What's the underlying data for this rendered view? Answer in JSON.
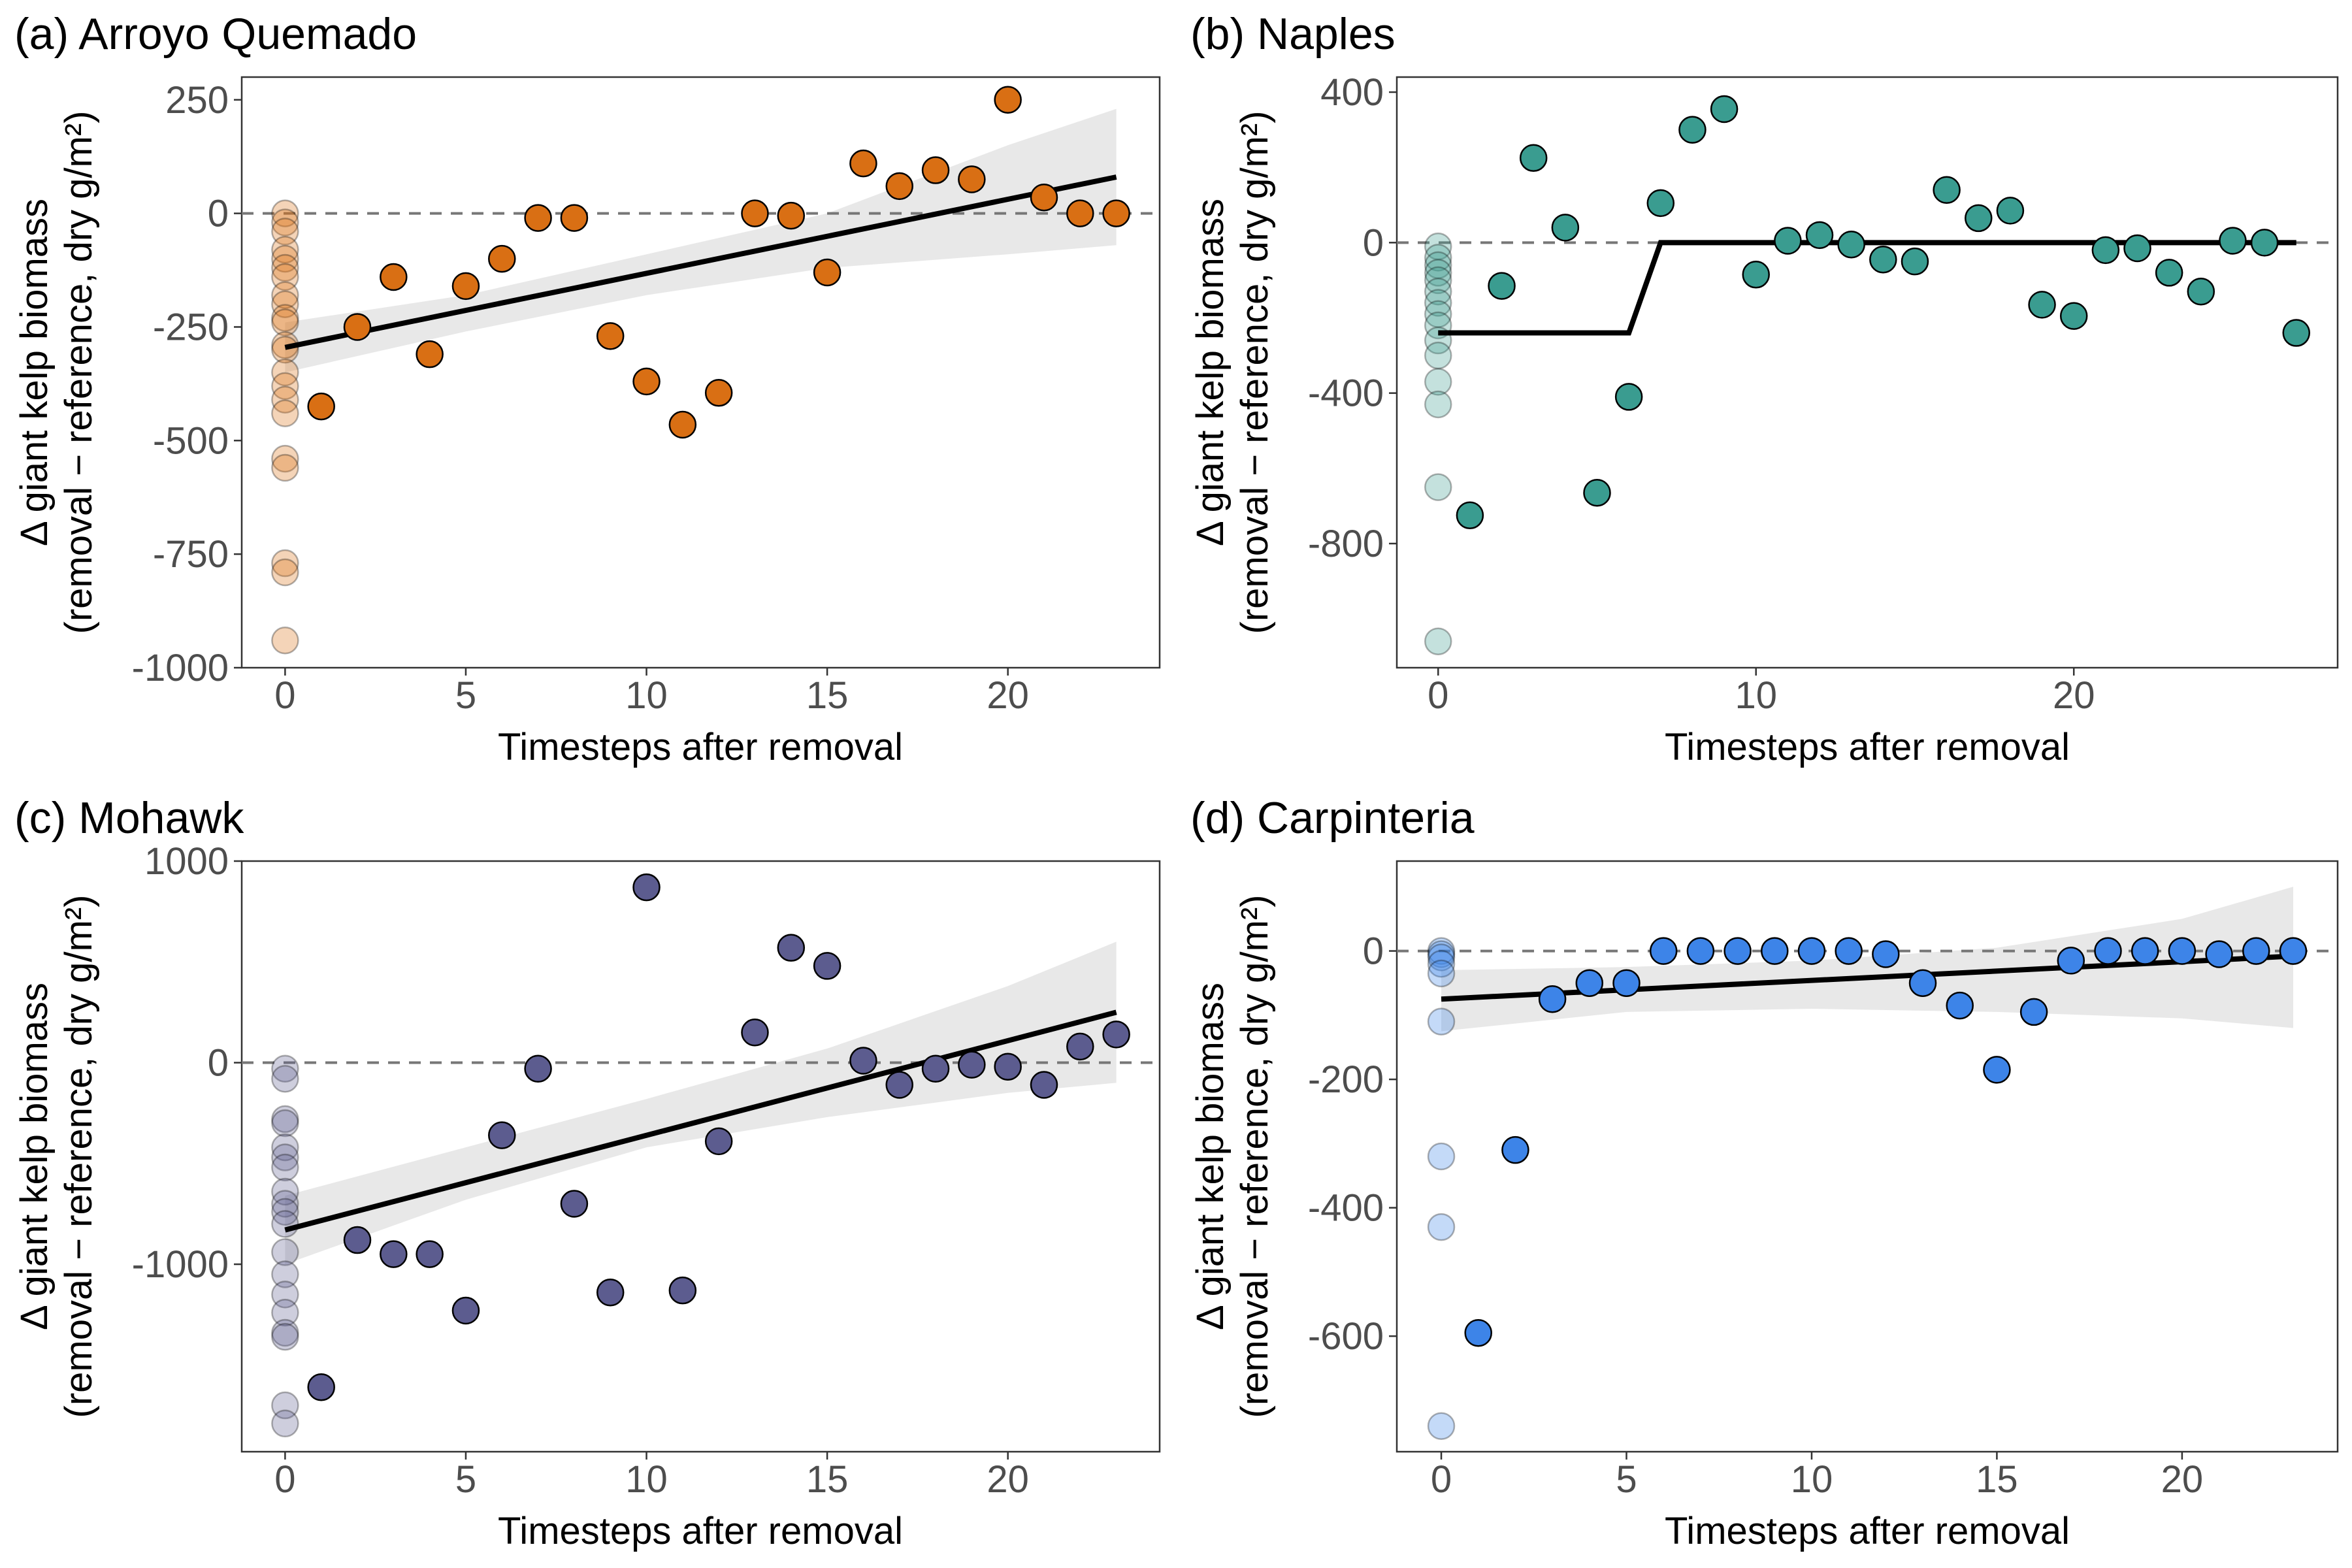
{
  "chart_data": [
    {
      "type": "scatter",
      "title": "(a) Arroyo Quemado",
      "xlabel": "Timesteps after removal",
      "ylabel": [
        "Δ giant kelp biomass",
        "(removal − reference, dry g/m²)"
      ],
      "xlim": [
        -1.2,
        24.2
      ],
      "ylim": [
        -1000,
        300
      ],
      "xticks": [
        0,
        5,
        10,
        15,
        20
      ],
      "yticks": [
        250,
        0,
        -250,
        -500,
        -750,
        -1000
      ],
      "ytick_labels": [
        "250",
        "0",
        "-250",
        "-500",
        "-750",
        "-1000"
      ],
      "color": "#d96f14",
      "reference_line_y": 0,
      "baseline_points_x0": [
        0,
        -20,
        -40,
        -80,
        -100,
        -120,
        -140,
        -180,
        -200,
        -230,
        -240,
        -290,
        -300,
        -350,
        -380,
        -410,
        -440,
        -540,
        -560,
        -770,
        -790,
        -940
      ],
      "points": {
        "x": [
          1,
          2,
          3,
          4,
          5,
          6,
          7,
          8,
          9,
          10,
          11,
          12,
          13,
          14,
          15,
          16,
          17,
          18,
          19,
          20,
          21,
          22,
          23
        ],
        "y": [
          -425,
          -250,
          -140,
          -310,
          -160,
          -100,
          -10,
          -10,
          -270,
          -370,
          -465,
          -395,
          0,
          -5,
          -130,
          110,
          60,
          95,
          75,
          250,
          35,
          0,
          0
        ]
      },
      "fit": {
        "x": [
          0,
          23
        ],
        "y": [
          -295,
          80
        ]
      },
      "ci": {
        "x": [
          0,
          5,
          10,
          15,
          20,
          23
        ],
        "upper": [
          -240,
          -180,
          -90,
          0,
          150,
          230
        ],
        "lower": [
          -350,
          -260,
          -180,
          -120,
          -90,
          -70
        ]
      }
    },
    {
      "type": "scatter",
      "title": "(b) Naples",
      "xlabel": "Timesteps after removal",
      "ylabel": [
        "Δ giant kelp biomass",
        "(removal − reference, dry g/m²)"
      ],
      "xlim": [
        -1.3,
        28.3
      ],
      "ylim": [
        -1130,
        440
      ],
      "xticks": [
        0,
        10,
        20
      ],
      "yticks": [
        400,
        0,
        -400,
        -800
      ],
      "ytick_labels": [
        "400",
        "0",
        "-400",
        "-800"
      ],
      "color": "#3a9c90",
      "reference_line_y": 0,
      "baseline_points_x0": [
        -10,
        -40,
        -60,
        -80,
        -100,
        -130,
        -160,
        -190,
        -220,
        -260,
        -300,
        -370,
        -430,
        -650,
        -1060
      ],
      "points": {
        "x": [
          1,
          2,
          3,
          4,
          5,
          6,
          7,
          8,
          9,
          10,
          11,
          12,
          13,
          14,
          15,
          16,
          17,
          18,
          19,
          20,
          21,
          22,
          23,
          24,
          25,
          26,
          27
        ],
        "y": [
          -725,
          -115,
          225,
          40,
          -665,
          -410,
          105,
          300,
          355,
          -85,
          5,
          20,
          -5,
          -45,
          -50,
          140,
          65,
          85,
          -165,
          -195,
          -20,
          -15,
          -80,
          -130,
          5,
          0,
          -240
        ]
      },
      "fit": {
        "x": [
          0,
          6,
          7,
          27
        ],
        "y": [
          -240,
          -240,
          0,
          0
        ]
      }
    },
    {
      "type": "scatter",
      "title": "(c) Mohawk",
      "xlabel": "Timesteps after removal",
      "ylabel": [
        "Δ giant kelp biomass",
        "(removal − reference, dry g/m²)"
      ],
      "xlim": [
        -1.2,
        24.2
      ],
      "ylim": [
        -1930,
        1000
      ],
      "xticks": [
        0,
        5,
        10,
        15,
        20
      ],
      "yticks": [
        1000,
        0,
        -1000
      ],
      "ytick_labels": [
        "1000",
        "0",
        "-1000"
      ],
      "color": "#5c5c8f",
      "reference_line_y": 0,
      "baseline_points_x0": [
        -30,
        -80,
        -280,
        -300,
        -420,
        -470,
        -520,
        -640,
        -700,
        -740,
        -800,
        -940,
        -1050,
        -1150,
        -1240,
        -1340,
        -1360,
        -1700,
        -1790
      ],
      "points": {
        "x": [
          1,
          2,
          3,
          4,
          5,
          6,
          7,
          8,
          9,
          10,
          11,
          12,
          13,
          14,
          15,
          16,
          17,
          18,
          19,
          20,
          21,
          22,
          23
        ],
        "y": [
          -1610,
          -880,
          -950,
          -950,
          -1230,
          -360,
          -30,
          -700,
          -1140,
          870,
          -1130,
          -390,
          150,
          570,
          480,
          10,
          -110,
          -30,
          -10,
          -20,
          -110,
          80,
          140
        ]
      },
      "fit": {
        "x": [
          0,
          23
        ],
        "y": [
          -830,
          250
        ]
      },
      "ci": {
        "x": [
          0,
          5,
          10,
          15,
          20,
          23
        ],
        "upper": [
          -660,
          -420,
          -180,
          70,
          380,
          600
        ],
        "lower": [
          -1000,
          -680,
          -420,
          -270,
          -150,
          -100
        ]
      }
    },
    {
      "type": "scatter",
      "title": "(d) Carpinteria",
      "xlabel": "Timesteps after removal",
      "ylabel": [
        "Δ giant kelp biomass",
        "(removal − reference, dry g/m²)"
      ],
      "xlim": [
        -1.2,
        24.2
      ],
      "ylim": [
        -780,
        140
      ],
      "xticks": [
        0,
        5,
        10,
        15,
        20
      ],
      "yticks": [
        0,
        -200,
        -400,
        -600
      ],
      "ytick_labels": [
        "0",
        "-200",
        "-400",
        "-600"
      ],
      "color": "#3d84e8",
      "reference_line_y": 0,
      "baseline_points_x0": [
        0,
        -5,
        -10,
        -20,
        -35,
        -110,
        -320,
        -430,
        -740
      ],
      "points": {
        "x": [
          1,
          2,
          3,
          4,
          5,
          6,
          7,
          8,
          9,
          10,
          11,
          12,
          13,
          14,
          15,
          16,
          17,
          18,
          19,
          20,
          21,
          22,
          23
        ],
        "y": [
          -595,
          -310,
          -75,
          -50,
          -50,
          0,
          0,
          0,
          0,
          0,
          0,
          -5,
          -50,
          -85,
          -185,
          -95,
          -15,
          0,
          0,
          0,
          -5,
          0,
          0
        ]
      },
      "fit": {
        "x": [
          0,
          23
        ],
        "y": [
          -75,
          -8
        ]
      },
      "ci": {
        "x": [
          0,
          5,
          10,
          15,
          20,
          23
        ],
        "upper": [
          -30,
          -25,
          -15,
          5,
          50,
          100
        ],
        "lower": [
          -125,
          -95,
          -90,
          -95,
          -105,
          -120
        ]
      }
    }
  ]
}
